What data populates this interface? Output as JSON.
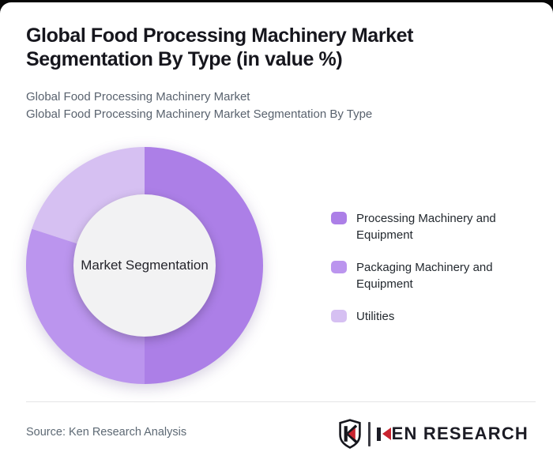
{
  "header": {
    "title_lines": [
      "Global Food Processing Machinery Market",
      "Segmentation By Type (in value %)"
    ],
    "subtitle_lines": [
      "Global Food Processing Machinery Market",
      "Global Food Processing Machinery Market Segmentation By Type"
    ]
  },
  "chart_data": {
    "type": "pie",
    "subtype": "donut",
    "title": "Global Food Processing Machinery Market Segmentation By Type (in value %)",
    "center_label": "Market Segmentation",
    "labels": [
      "Processing Machinery and Equipment",
      "Packaging Machinery and Equipment",
      "Utilities"
    ],
    "values": [
      50,
      30,
      20
    ],
    "unit": "value %",
    "colors": [
      "#ac7fe7",
      "#bb95ee",
      "#d6c0f2"
    ],
    "inner_circle_color": "#f2f2f3",
    "start_angle_deg": 0,
    "direction": "clockwise",
    "legend_position": "right"
  },
  "footer": {
    "source": "Source: Ken Research Analysis",
    "brand": "KEN RESEARCH",
    "brand_rest": "EN RESEARCH",
    "brand_red": "#c92430",
    "brand_dark": "#1b1b24"
  }
}
